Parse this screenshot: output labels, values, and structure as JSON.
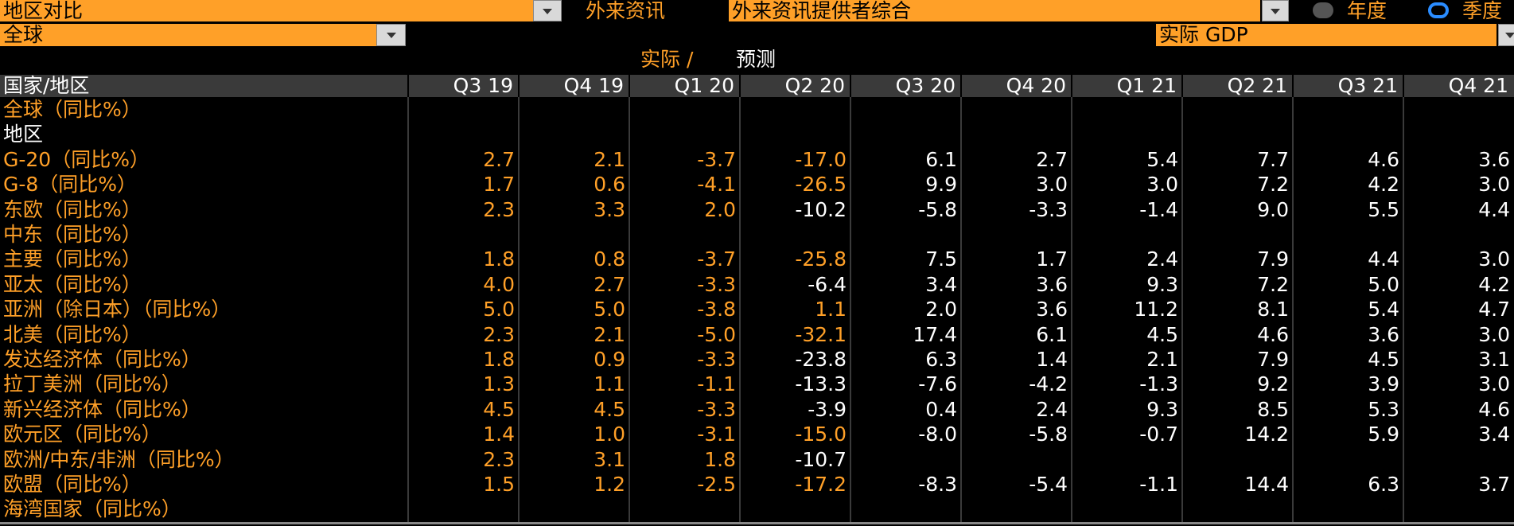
{
  "toolbar": {
    "region_select": "地区对比",
    "source_label": "外来资讯",
    "source_select": "外来资讯提供者综合",
    "period_options": [
      "年度",
      "季度"
    ],
    "period_selected": 1,
    "scope_select": "全球",
    "metric_select": "实际 GDP"
  },
  "table": {
    "caption_actual": "实际 /",
    "caption_forecast": "预测",
    "header_label": "国家/地区",
    "columns": [
      "Q3 19",
      "Q4 19",
      "Q1 20",
      "Q2 20",
      "Q3 20",
      "Q4 20",
      "Q1 21",
      "Q2 21",
      "Q3 21",
      "Q4 21"
    ],
    "rows": [
      {
        "label": "全球（同比%）",
        "actual_count": 0,
        "values": [
          null,
          null,
          null,
          null,
          null,
          null,
          null,
          null,
          null,
          null
        ]
      },
      {
        "label": "地区",
        "heading": true,
        "actual_count": 0,
        "values": [
          null,
          null,
          null,
          null,
          null,
          null,
          null,
          null,
          null,
          null
        ]
      },
      {
        "label": "G-20（同比%）",
        "actual_count": 4,
        "values": [
          "2.7",
          "2.1",
          "-3.7",
          "-17.0",
          "6.1",
          "2.7",
          "5.4",
          "7.7",
          "4.6",
          "3.6"
        ]
      },
      {
        "label": "G-8（同比%）",
        "actual_count": 4,
        "values": [
          "1.7",
          "0.6",
          "-4.1",
          "-26.5",
          "9.9",
          "3.0",
          "3.0",
          "7.2",
          "4.2",
          "3.0"
        ]
      },
      {
        "label": "东欧（同比%）",
        "actual_count": 3,
        "values": [
          "2.3",
          "3.3",
          "2.0",
          "-10.2",
          "-5.8",
          "-3.3",
          "-1.4",
          "9.0",
          "5.5",
          "4.4"
        ]
      },
      {
        "label": "中东（同比%）",
        "actual_count": 0,
        "values": [
          null,
          null,
          null,
          null,
          null,
          null,
          null,
          null,
          null,
          null
        ]
      },
      {
        "label": "主要（同比%）",
        "actual_count": 4,
        "values": [
          "1.8",
          "0.8",
          "-3.7",
          "-25.8",
          "7.5",
          "1.7",
          "2.4",
          "7.9",
          "4.4",
          "3.0"
        ]
      },
      {
        "label": "亚太（同比%）",
        "actual_count": 3,
        "values": [
          "4.0",
          "2.7",
          "-3.3",
          "-6.4",
          "3.4",
          "3.6",
          "9.3",
          "7.2",
          "5.0",
          "4.2"
        ]
      },
      {
        "label": "亚洲（除日本）（同比%）",
        "actual_count": 4,
        "values": [
          "5.0",
          "5.0",
          "-3.8",
          "1.1",
          "2.0",
          "3.6",
          "11.2",
          "8.1",
          "5.4",
          "4.7"
        ]
      },
      {
        "label": "北美（同比%）",
        "actual_count": 4,
        "values": [
          "2.3",
          "2.1",
          "-5.0",
          "-32.1",
          "17.4",
          "6.1",
          "4.5",
          "4.6",
          "3.6",
          "3.0"
        ]
      },
      {
        "label": "发达经济体（同比%）",
        "actual_count": 3,
        "values": [
          "1.8",
          "0.9",
          "-3.3",
          "-23.8",
          "6.3",
          "1.4",
          "2.1",
          "7.9",
          "4.5",
          "3.1"
        ]
      },
      {
        "label": "拉丁美洲（同比%）",
        "actual_count": 3,
        "values": [
          "1.3",
          "1.1",
          "-1.1",
          "-13.3",
          "-7.6",
          "-4.2",
          "-1.3",
          "9.2",
          "3.9",
          "3.0"
        ]
      },
      {
        "label": "新兴经济体（同比%）",
        "actual_count": 3,
        "values": [
          "4.5",
          "4.5",
          "-3.3",
          "-3.9",
          "0.4",
          "2.4",
          "9.3",
          "8.5",
          "5.3",
          "4.6"
        ]
      },
      {
        "label": "欧元区（同比%）",
        "actual_count": 4,
        "values": [
          "1.4",
          "1.0",
          "-3.1",
          "-15.0",
          "-8.0",
          "-5.8",
          "-0.7",
          "14.2",
          "5.9",
          "3.4"
        ]
      },
      {
        "label": "欧洲/中东/非洲（同比%）",
        "actual_count": 3,
        "values": [
          "2.3",
          "3.1",
          "1.8",
          "-10.7",
          null,
          null,
          null,
          null,
          null,
          null
        ]
      },
      {
        "label": "欧盟（同比%）",
        "actual_count": 4,
        "values": [
          "1.5",
          "1.2",
          "-2.5",
          "-17.2",
          "-8.3",
          "-5.4",
          "-1.1",
          "14.4",
          "6.3",
          "3.7"
        ]
      },
      {
        "label": "海湾国家（同比%）",
        "actual_count": 0,
        "values": [
          null,
          null,
          null,
          null,
          null,
          null,
          null,
          null,
          null,
          null
        ]
      }
    ]
  }
}
